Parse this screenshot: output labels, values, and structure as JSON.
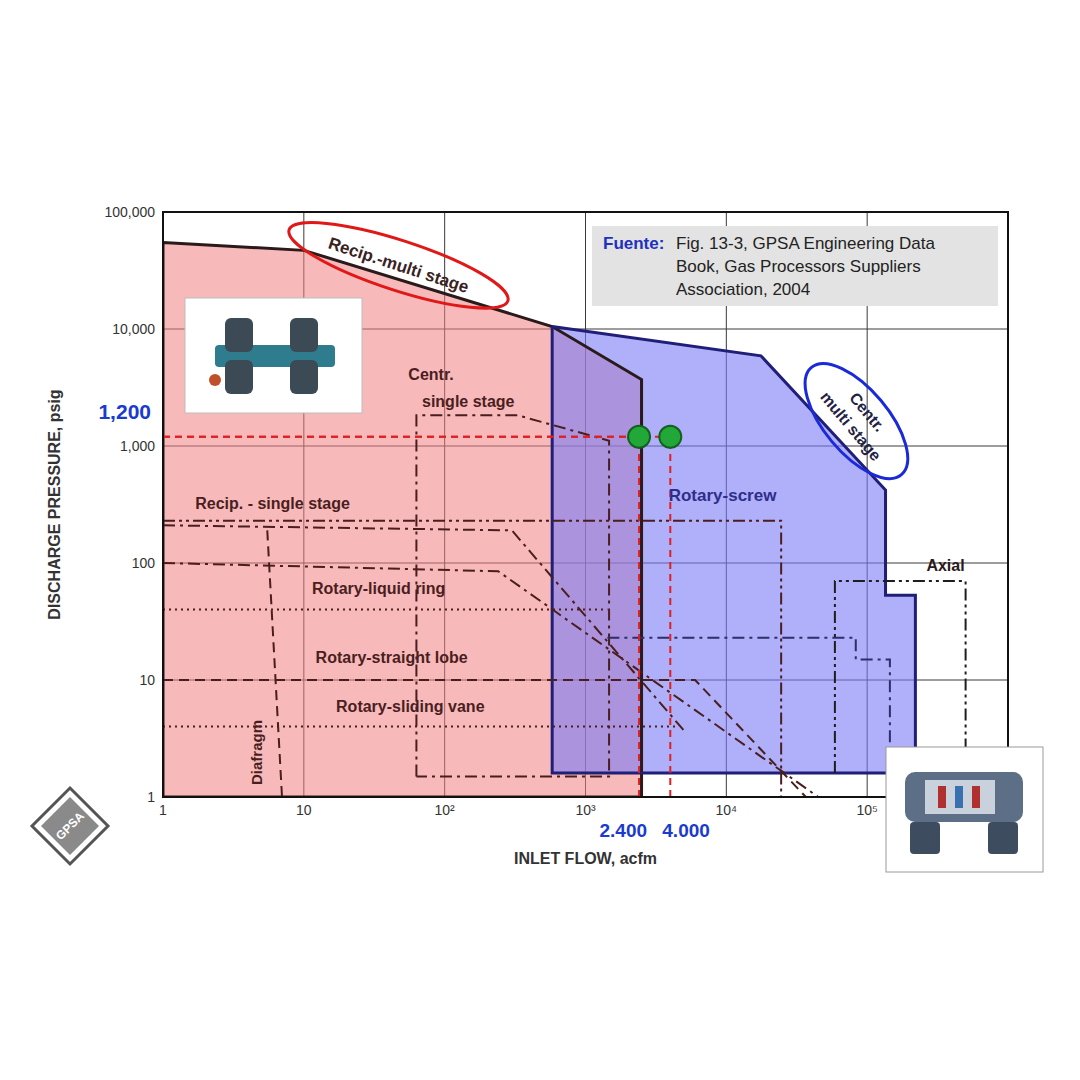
{
  "chart_data": {
    "type": "area",
    "xlabel": "INLET FLOW, acfm",
    "ylabel": "DISCHARGE PRESSURE, psig",
    "log": true,
    "grid": true,
    "xlim": [
      1,
      1000000
    ],
    "ylim": [
      1,
      100000
    ],
    "xticks": [
      1,
      10,
      {
        "value": 100,
        "label": "10²"
      },
      {
        "value": 1000,
        "label": "10³"
      },
      {
        "value": 10000,
        "label": "10⁴"
      },
      {
        "value": 100000,
        "label": "10⁵"
      }
    ],
    "yticks": [
      1,
      10,
      100,
      {
        "value": 1000,
        "label": "1,000"
      },
      {
        "value": 10000,
        "label": "10,000"
      },
      {
        "value": 100000,
        "label": "100,000"
      }
    ],
    "series": [
      {
        "type": "area",
        "color": "#f08080",
        "x": [
          1,
          10,
          580,
          2500
        ],
        "values": [
          55000,
          47000,
          10500,
          3700
        ],
        "low": [
          1,
          1,
          1,
          1
        ]
      },
      {
        "type": "area",
        "color": "#7a7af7",
        "x": [
          580,
          17600,
          135000,
          135000,
          220000
        ],
        "values": [
          10500,
          5900,
          420,
          53,
          53
        ],
        "low": [
          1.6,
          1.6,
          1.6,
          1.6,
          1.6
        ]
      },
      {
        "type": "line",
        "line_style": "dashdot",
        "color": "#4a1e1e",
        "x": [
          63,
          63,
          330,
          1470,
          1470,
          63
        ],
        "values": [
          1.5,
          1830,
          1830,
          1110,
          1.5,
          1.5
        ]
      },
      {
        "type": "line",
        "line_style": "dashdotdot",
        "color": "#4a1e1e",
        "x": [
          1,
          24500,
          24500
        ],
        "values": [
          230,
          230,
          1
        ]
      },
      {
        "type": "line",
        "line_style": "dashdot",
        "color": "#4a1e1e",
        "x": [
          1,
          300,
          5000
        ],
        "values": [
          210,
          190,
          3.7
        ]
      },
      {
        "type": "line",
        "line_style": "dashdot",
        "color": "#4a1e1e",
        "x": [
          1,
          240,
          45000
        ],
        "values": [
          100,
          85,
          1
        ]
      },
      {
        "type": "line",
        "line_style": "dotted",
        "color": "#4a1e1e",
        "x": [
          1,
          1430
        ],
        "values": [
          40,
          40
        ]
      },
      {
        "type": "line",
        "line_style": "dashdot",
        "color": "#2e2e6a",
        "x": [
          1430,
          83000,
          83000,
          145000,
          145000
        ],
        "values": [
          23,
          23,
          15,
          15,
          1
        ]
      },
      {
        "type": "line",
        "line_style": "dashed",
        "color": "#4a1e1e",
        "x": [
          1,
          6000,
          36700
        ],
        "values": [
          10,
          10,
          1
        ]
      },
      {
        "type": "line",
        "line_style": "dotted",
        "color": "#4a1e1e",
        "x": [
          1,
          4450
        ],
        "values": [
          4,
          4
        ]
      },
      {
        "type": "line",
        "line_style": "dashed",
        "color": "#4a1e1e",
        "x": [
          5.5,
          7
        ],
        "values": [
          190,
          1
        ]
      },
      {
        "type": "line",
        "line_style": "dashdotdot",
        "color": "#1e1e1e",
        "x": [
          59000,
          59000,
          500000,
          500000
        ],
        "values": [
          1.6,
          70,
          70,
          1
        ]
      },
      {
        "type": "scatter",
        "color": "#22a838",
        "marker": "circle",
        "x": [
          2400,
          4000
        ],
        "values": [
          1200,
          1200
        ],
        "x_labels": [
          "2.400",
          "4.000"
        ],
        "y_label": "1,200"
      }
    ],
    "annotations": [
      {
        "text": "Recip.-multi stage",
        "x": 47,
        "y": 35000,
        "color": "#3a2222"
      },
      {
        "text": "Centr.",
        "x": 80,
        "y": 4100,
        "color": "#4a1e1e"
      },
      {
        "text": "single stage",
        "x": 147,
        "y": 2420,
        "color": "#4a1e1e"
      },
      {
        "text": "Recip. - single stage",
        "x": 6,
        "y": 325,
        "color": "#4a1e1e"
      },
      {
        "text": "Rotary-liquid ring",
        "x": 34,
        "y": 60,
        "color": "#4a1e1e"
      },
      {
        "text": "Rotary-straight lobe",
        "x": 42,
        "y": 15.6,
        "color": "#4a1e1e"
      },
      {
        "text": "Rotary-sliding vane",
        "x": 57,
        "y": 5.9,
        "color": "#4a1e1e"
      },
      {
        "text": "Diafragm",
        "x": 4.6,
        "y": 2.4,
        "color": "#4a1e1e"
      },
      {
        "text": "Rotary-screw",
        "x": 9400,
        "y": 375,
        "color": "#2e2e8a"
      },
      {
        "text": "Centr.",
        "x": 100000,
        "y": 1950,
        "color": "#222244"
      },
      {
        "text": "multi stage",
        "x": 76500,
        "y": 1480,
        "color": "#222244"
      },
      {
        "text": "Axial",
        "x": 360000,
        "y": 96,
        "color": "#2a1a1a"
      }
    ],
    "source": {
      "label": "Fuente:",
      "lines": [
        "Fig. 13-3, GPSA Engineering Data",
        "Book, Gas Processors Suppliers",
        "Association, 2004"
      ]
    },
    "logo": "GPSA"
  }
}
